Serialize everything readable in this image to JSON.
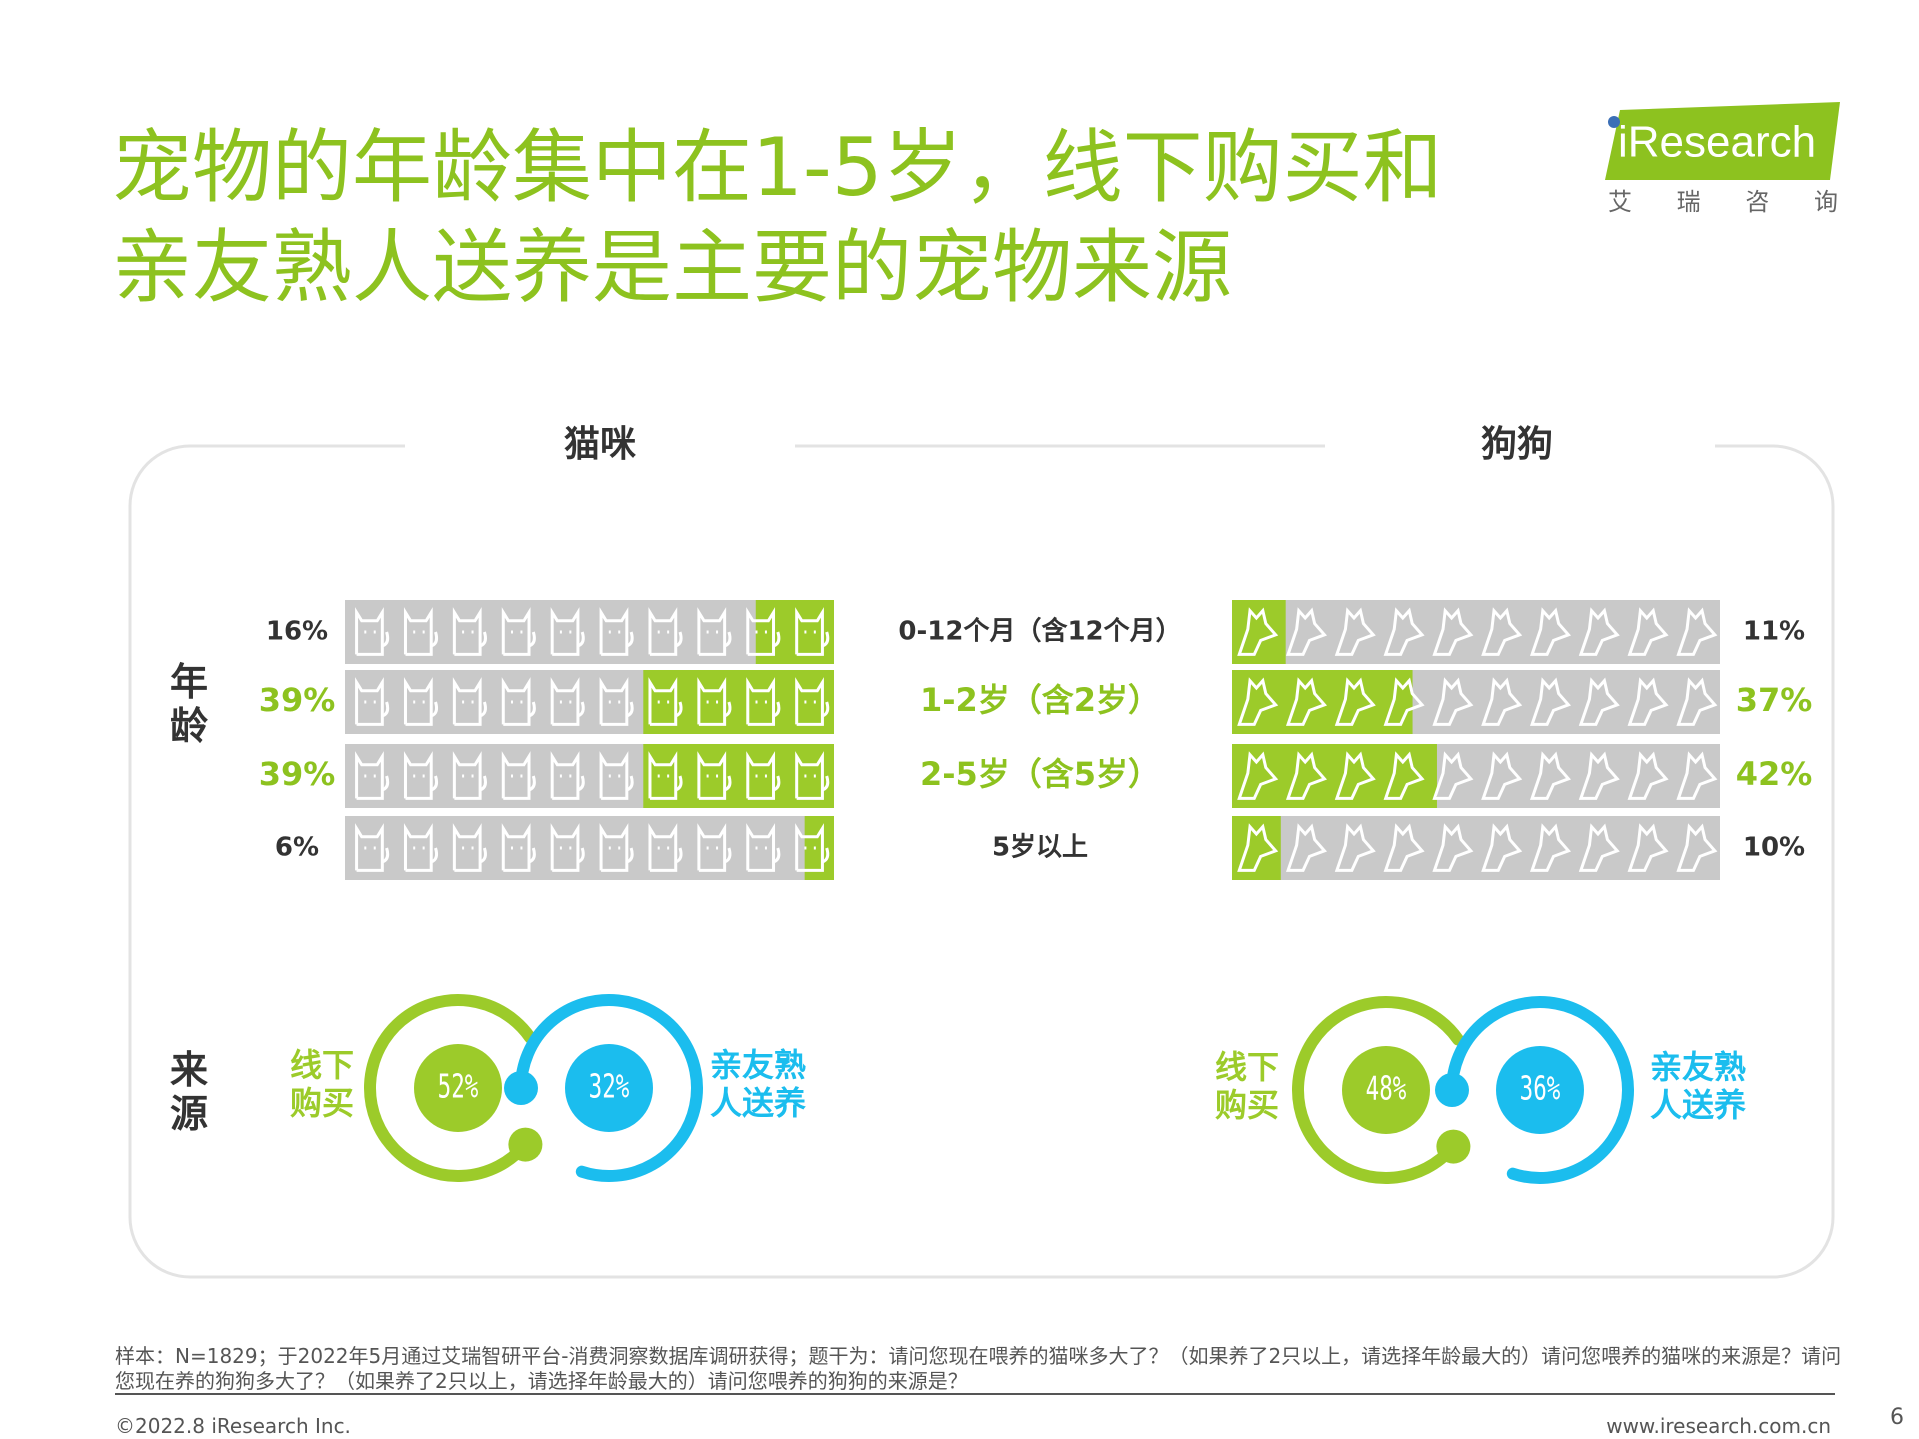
{
  "header": {
    "title_lines": [
      "宠物的年龄集中在1-5岁，线下购买和",
      "亲友熟人送养是主要的宠物来源"
    ],
    "logo": "iResearch",
    "logo_sub": "艾 瑞 咨 询"
  },
  "chart_data": [
    {
      "type": "pictogram",
      "label": "年龄",
      "categories": [
        "0-12个月（含12个月）",
        "1-2岁（含2岁）",
        "2-5岁（含5岁）",
        "5岁以上"
      ],
      "highlighted": [
        1,
        2
      ],
      "highlight_color": "#8dc21f",
      "empty_color": "#c9c9c9",
      "xlim": [
        0,
        100
      ],
      "series": [
        {
          "name": "猫咪",
          "color": "#9ccb2a",
          "values": [
            16,
            39,
            39,
            6
          ],
          "value_labels": [
            "16%",
            "39%",
            "39%",
            "6%"
          ]
        },
        {
          "name": "狗狗",
          "color": "#9ccb2a",
          "values": [
            11,
            37,
            42,
            10
          ],
          "value_labels": [
            "11%",
            "37%",
            "42%",
            "10%"
          ]
        }
      ]
    },
    {
      "type": "rings",
      "label": "来源",
      "categories": [
        "线下购买",
        "亲友熟人送养"
      ],
      "colors": [
        "#9ccb2a",
        "#1bbdee"
      ],
      "series": [
        {
          "name": "猫咪",
          "values": [
            52,
            32
          ],
          "value_labels": [
            "52%",
            "32%"
          ]
        },
        {
          "name": "狗狗",
          "values": [
            48,
            36
          ],
          "value_labels": [
            "48%",
            "36%"
          ]
        }
      ]
    }
  ],
  "footer": {
    "note": "样本：N=1829；于2022年5月通过艾瑞智研平台-消费洞察数据库调研获得；题干为：请问您现在喂养的猫咪多大了？（如果养了2只以上，请选择年龄最大的）请问您喂养的猫咪的来源是？请问您现在养的狗狗多大了？（如果养了2只以上，请选择年龄最大的）请问您喂养的狗狗的来源是？",
    "copyright": "©2022.8 iResearch Inc.",
    "website": "www.iresearch.com.cn",
    "page": "6"
  }
}
